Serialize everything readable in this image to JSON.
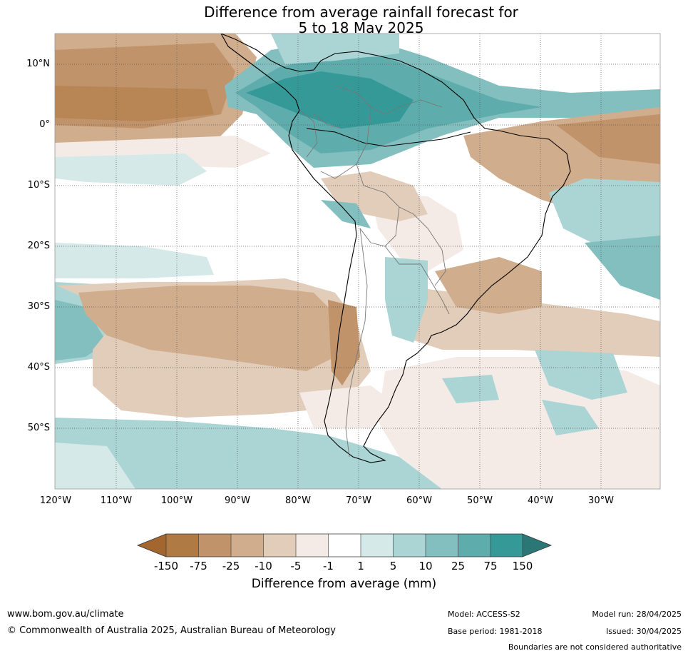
{
  "title": {
    "line1": "Difference from average rainfall forecast for",
    "line2": "5 to 18 May 2025"
  },
  "map": {
    "latitude_labels": [
      "10°N",
      "0°",
      "10°S",
      "20°S",
      "30°S",
      "40°S",
      "50°S"
    ],
    "longitude_labels": [
      "120°W",
      "110°W",
      "100°W",
      "90°W",
      "80°W",
      "70°W",
      "60°W",
      "50°W",
      "40°W",
      "30°W"
    ]
  },
  "legend": {
    "ticks": [
      "-150",
      "-75",
      "-25",
      "-10",
      "-5",
      "-1",
      "1",
      "5",
      "10",
      "25",
      "75",
      "150"
    ],
    "colors": [
      "#a2662e",
      "#b07a44",
      "#c0936a",
      "#d0ad8c",
      "#e2cdbb",
      "#f4ebe6",
      "#ffffff",
      "#d5eae8",
      "#aad5d4",
      "#82bfbe",
      "#5eadac",
      "#349997",
      "#2a7775"
    ],
    "label": "Difference from average (mm)"
  },
  "footer": {
    "url": "www.bom.gov.au/climate",
    "copyright": "© Commonwealth of Australia 2025, Australian Bureau of Meteorology",
    "model": "Model: ACCESS-S2",
    "base_period": "Base period: 1981-2018",
    "model_run": "Model run: 28/04/2025",
    "issued": "Issued: 30/04/2025",
    "disclaimer": "Boundaries are not considered authoritative"
  }
}
